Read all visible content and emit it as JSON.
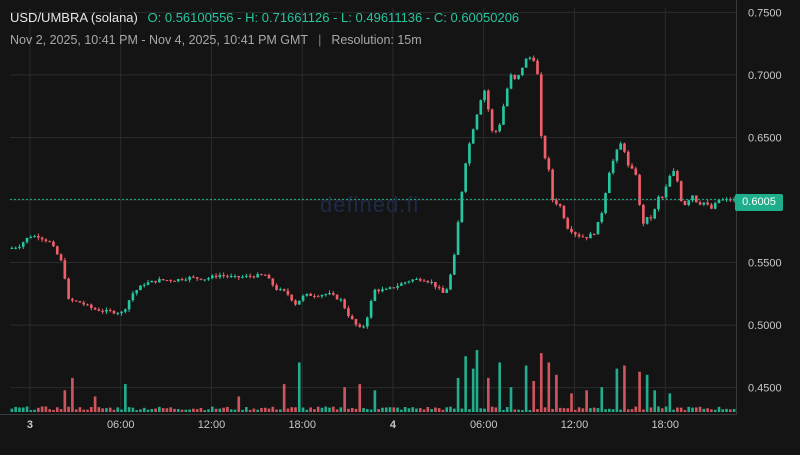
{
  "header": {
    "pair": "USD/UMBRA (solana)",
    "ohlc": [
      {
        "label": "O:",
        "value": "0.56100556"
      },
      {
        "label": "H:",
        "value": "0.71661126"
      },
      {
        "label": "L:",
        "value": "0.49611136"
      },
      {
        "label": "C:",
        "value": "0.60050206"
      }
    ],
    "range": "Nov 2, 2025, 10:41 PM - Nov 4, 2025, 10:41 PM GMT",
    "resolution": "Resolution: 15m"
  },
  "watermark": "defined.fi",
  "last_price_label": "0.6005",
  "colors": {
    "background": "#141414",
    "up": "#26c6a0",
    "down": "#ef5f6a",
    "grid": "#2b2b2b",
    "axis_text": "#c8c8c8",
    "last_price_line": "#1fae8c"
  },
  "chart_data": {
    "type": "candlestick",
    "y_ticks": [
      "0.4500",
      "0.5000",
      "0.5500",
      "0.6000",
      "0.6500",
      "0.7000",
      "0.7500"
    ],
    "ylim": [
      0.4305,
      0.7535
    ],
    "x_ticks": [
      {
        "label": "3",
        "hour": 1.32,
        "bold": true
      },
      {
        "label": "06:00",
        "hour": 7.32
      },
      {
        "label": "12:00",
        "hour": 13.32
      },
      {
        "label": "18:00",
        "hour": 19.32
      },
      {
        "label": "4",
        "hour": 25.32,
        "bold": true
      },
      {
        "label": "06:00",
        "hour": 31.32
      },
      {
        "label": "12:00",
        "hour": 37.32
      },
      {
        "label": "18:00",
        "hour": 43.32
      }
    ],
    "x_range_hours": [
      0,
      48
    ],
    "grid": true,
    "last_price": 0.6005,
    "anchors": [
      [
        0.0,
        0.561
      ],
      [
        0.7,
        0.563
      ],
      [
        1.4,
        0.571
      ],
      [
        2.0,
        0.571
      ],
      [
        2.8,
        0.566
      ],
      [
        3.6,
        0.549
      ],
      [
        4.0,
        0.52
      ],
      [
        4.8,
        0.518
      ],
      [
        5.6,
        0.513
      ],
      [
        6.4,
        0.511
      ],
      [
        7.6,
        0.51
      ],
      [
        8.2,
        0.525
      ],
      [
        9.0,
        0.533
      ],
      [
        10.0,
        0.536
      ],
      [
        11.0,
        0.536
      ],
      [
        12.0,
        0.538
      ],
      [
        13.0,
        0.537
      ],
      [
        14.0,
        0.54
      ],
      [
        15.0,
        0.538
      ],
      [
        16.0,
        0.539
      ],
      [
        17.0,
        0.54
      ],
      [
        17.7,
        0.529
      ],
      [
        18.4,
        0.526
      ],
      [
        19.0,
        0.517
      ],
      [
        19.6,
        0.524
      ],
      [
        20.4,
        0.524
      ],
      [
        21.2,
        0.525
      ],
      [
        22.0,
        0.52
      ],
      [
        22.5,
        0.508
      ],
      [
        23.2,
        0.497
      ],
      [
        23.6,
        0.5
      ],
      [
        24.2,
        0.528
      ],
      [
        25.0,
        0.528
      ],
      [
        25.8,
        0.532
      ],
      [
        26.6,
        0.536
      ],
      [
        27.4,
        0.537
      ],
      [
        28.0,
        0.534
      ],
      [
        28.8,
        0.525
      ],
      [
        29.1,
        0.531
      ],
      [
        29.5,
        0.555
      ],
      [
        29.9,
        0.598
      ],
      [
        30.3,
        0.635
      ],
      [
        30.8,
        0.66
      ],
      [
        31.3,
        0.683
      ],
      [
        31.6,
        0.69
      ],
      [
        31.9,
        0.655
      ],
      [
        32.4,
        0.655
      ],
      [
        32.8,
        0.678
      ],
      [
        33.2,
        0.7
      ],
      [
        33.6,
        0.695
      ],
      [
        34.2,
        0.712
      ],
      [
        34.7,
        0.715
      ],
      [
        35.0,
        0.7
      ],
      [
        35.3,
        0.64
      ],
      [
        35.7,
        0.628
      ],
      [
        36.0,
        0.6
      ],
      [
        36.5,
        0.595
      ],
      [
        37.0,
        0.578
      ],
      [
        37.6,
        0.572
      ],
      [
        38.2,
        0.57
      ],
      [
        38.8,
        0.574
      ],
      [
        39.3,
        0.592
      ],
      [
        39.7,
        0.621
      ],
      [
        40.2,
        0.638
      ],
      [
        40.6,
        0.647
      ],
      [
        41.0,
        0.627
      ],
      [
        41.5,
        0.621
      ],
      [
        41.9,
        0.58
      ],
      [
        42.2,
        0.585
      ],
      [
        42.6,
        0.586
      ],
      [
        43.0,
        0.602
      ],
      [
        43.3,
        0.602
      ],
      [
        43.7,
        0.618
      ],
      [
        44.1,
        0.624
      ],
      [
        44.5,
        0.6
      ],
      [
        44.8,
        0.596
      ],
      [
        45.2,
        0.605
      ],
      [
        45.6,
        0.597
      ],
      [
        46.0,
        0.598
      ],
      [
        46.5,
        0.593
      ],
      [
        47.0,
        0.6
      ],
      [
        47.6,
        0.6
      ]
    ],
    "volume_spikes": [
      [
        3.5,
        0.35
      ],
      [
        4.0,
        0.55
      ],
      [
        5.5,
        0.25
      ],
      [
        7.5,
        0.45
      ],
      [
        15.0,
        0.25
      ],
      [
        18.0,
        0.45
      ],
      [
        19.0,
        0.8
      ],
      [
        22.0,
        0.4
      ],
      [
        23.0,
        0.45
      ],
      [
        24.0,
        0.35
      ],
      [
        29.6,
        0.55
      ],
      [
        30.0,
        0.9
      ],
      [
        30.4,
        0.7
      ],
      [
        30.8,
        1.0
      ],
      [
        31.4,
        0.55
      ],
      [
        32.2,
        0.8
      ],
      [
        33.0,
        0.4
      ],
      [
        34.0,
        0.75
      ],
      [
        34.6,
        0.5
      ],
      [
        35.0,
        0.95
      ],
      [
        35.4,
        0.8
      ],
      [
        36.0,
        0.6
      ],
      [
        37.0,
        0.3
      ],
      [
        38.0,
        0.35
      ],
      [
        39.0,
        0.4
      ],
      [
        40.0,
        0.7
      ],
      [
        40.6,
        0.75
      ],
      [
        41.5,
        0.65
      ],
      [
        42.0,
        0.6
      ],
      [
        42.6,
        0.35
      ],
      [
        43.5,
        0.3
      ]
    ]
  }
}
